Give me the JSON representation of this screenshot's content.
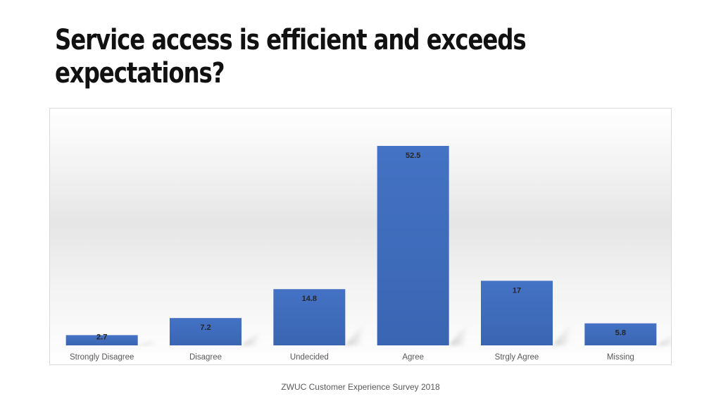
{
  "slide": {
    "title": "Service access is efficient and exceeds expectations?",
    "footer": "ZWUC Customer Experience Survey 2018"
  },
  "colors": {
    "bar": "#4472c4",
    "bar_dark": "#2f5597",
    "label": "#262626",
    "axis_text": "#595959"
  },
  "chart_data": {
    "type": "bar",
    "title": "",
    "xlabel": "",
    "ylabel": "",
    "categories": [
      "Strongly Disagree",
      "Disagree",
      "Undecided",
      "Agree",
      "Strgly Agree",
      "Missing"
    ],
    "values": [
      2.7,
      7.2,
      14.8,
      52.5,
      17,
      5.8
    ],
    "value_labels": [
      "2.7",
      "7.2",
      "14.8",
      "52.5",
      "17",
      "5.8"
    ],
    "ylim": [
      0,
      55
    ],
    "grid": false,
    "legend": "none"
  }
}
